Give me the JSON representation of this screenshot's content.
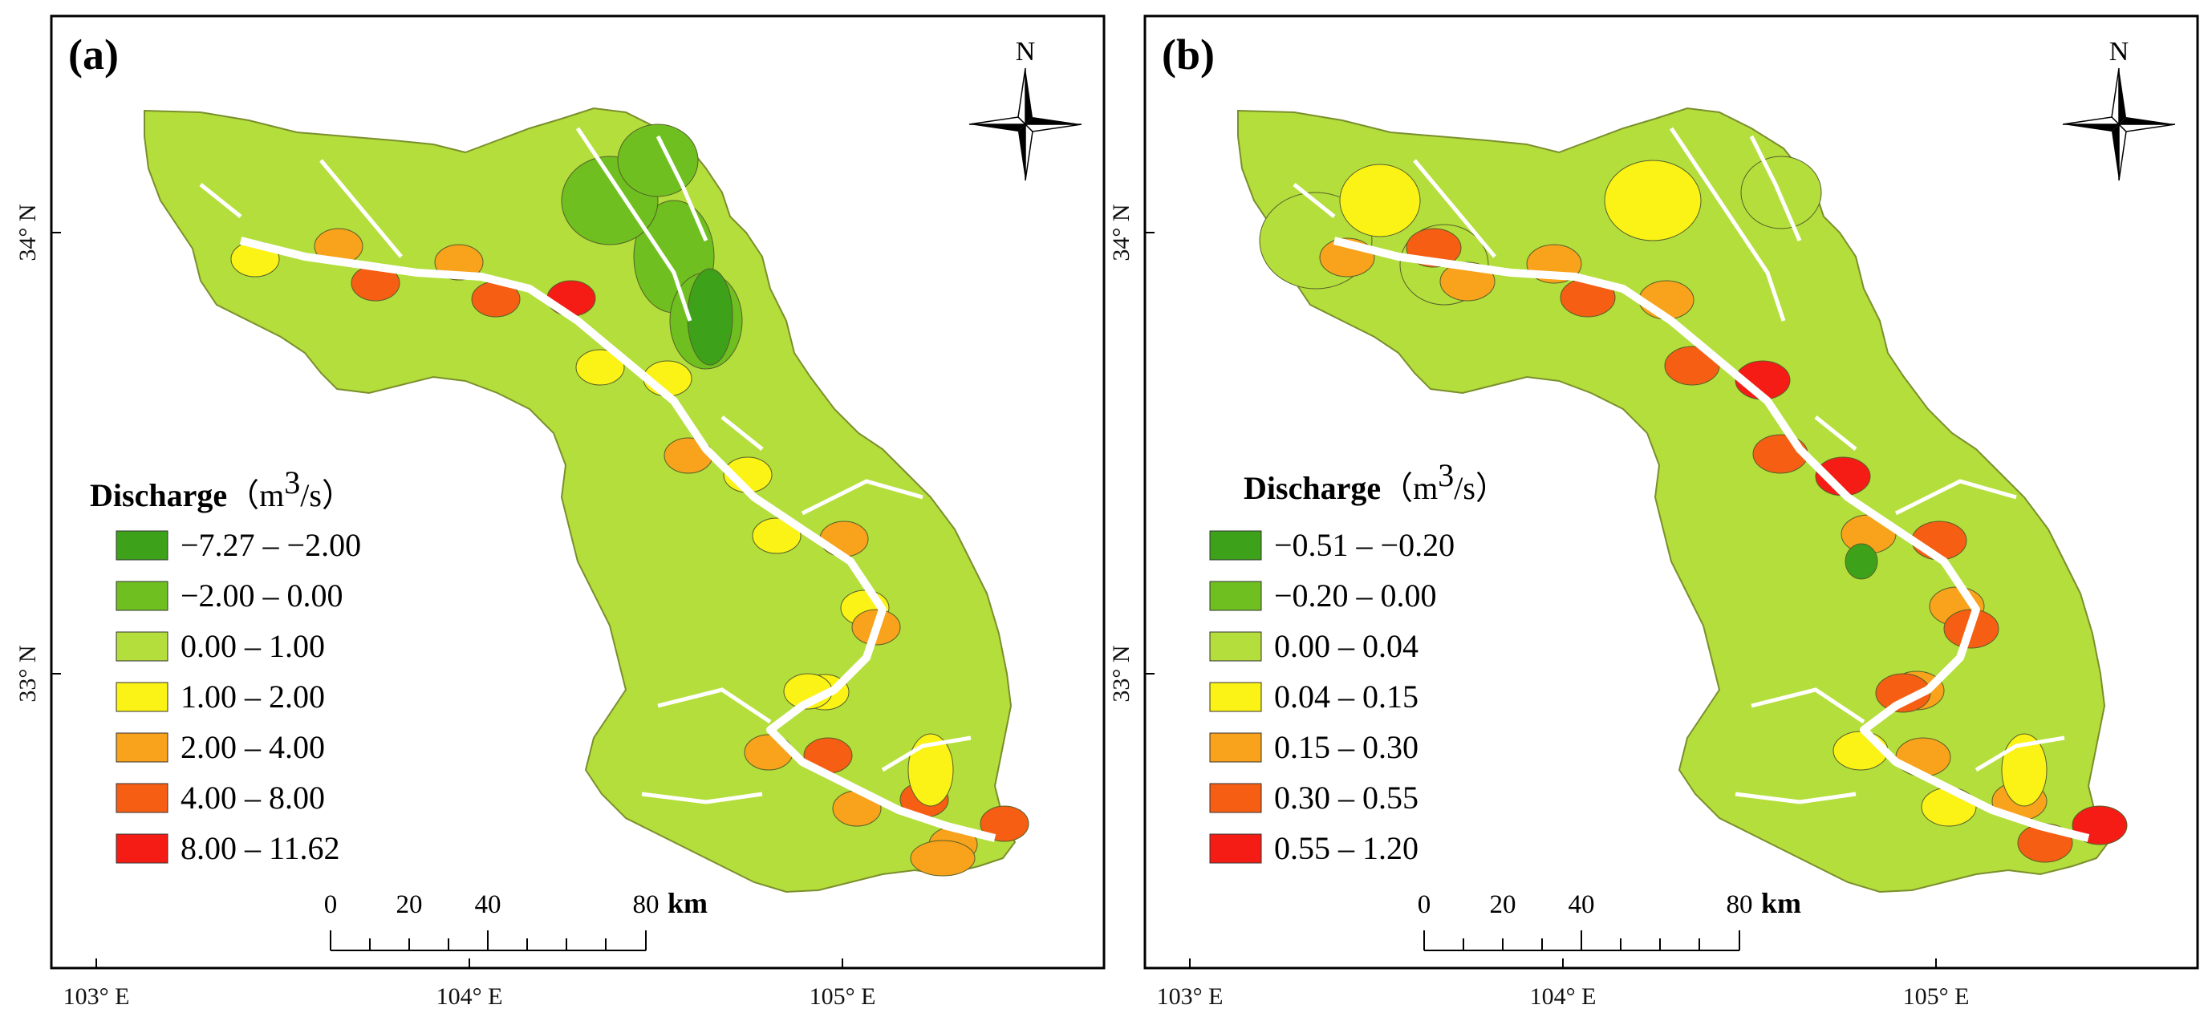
{
  "panels": [
    {
      "label": "(a)",
      "legend_title": "Discharge",
      "legend_unit_open": "（m",
      "legend_unit_sup": "3",
      "legend_unit_close": "/s）",
      "classes": [
        {
          "label": "−7.27 – −2.00",
          "color": "#3ea11a"
        },
        {
          "label": "−2.00 – 0.00",
          "color": "#6ebf1f"
        },
        {
          "label": "0.00 – 1.00",
          "color": "#b4de3c"
        },
        {
          "label": "1.00 – 2.00",
          "color": "#fbf216"
        },
        {
          "label": "2.00 – 4.00",
          "color": "#f9a21b"
        },
        {
          "label": "4.00 – 8.00",
          "color": "#f65e13"
        },
        {
          "label": "8.00 – 11.62",
          "color": "#f51c16"
        }
      ]
    },
    {
      "label": "(b)",
      "legend_title": "Discharge",
      "legend_unit_open": "（m",
      "legend_unit_sup": "3",
      "legend_unit_close": "/s）",
      "classes": [
        {
          "label": "−0.51 – −0.20",
          "color": "#3ea11a"
        },
        {
          "label": "−0.20 – 0.00",
          "color": "#6ebf1f"
        },
        {
          "label": "0.00 – 0.04",
          "color": "#b4de3c"
        },
        {
          "label": "0.04 – 0.15",
          "color": "#fbf216"
        },
        {
          "label": "0.15 – 0.30",
          "color": "#f9a21b"
        },
        {
          "label": "0.30 – 0.55",
          "color": "#f65e13"
        },
        {
          "label": "0.55 – 1.20",
          "color": "#f51c16"
        }
      ]
    }
  ],
  "axes": {
    "x_ticks": [
      "103° E",
      "104° E",
      "105° E"
    ],
    "y_ticks": [
      "34° N",
      "33° N"
    ]
  },
  "north_label": "N",
  "scale_bar": {
    "ticks": [
      "0",
      "20",
      "40",
      "80"
    ],
    "unit": "km"
  }
}
